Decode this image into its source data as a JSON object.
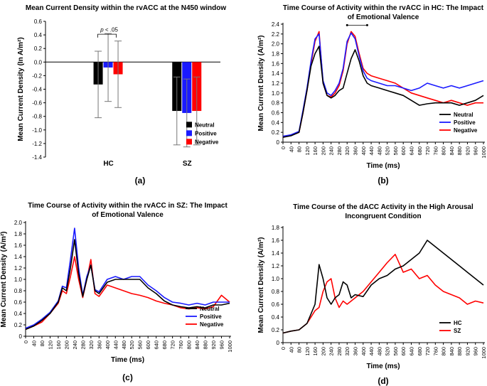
{
  "chart_data": [
    {
      "panel_label": "(a)",
      "type": "bar",
      "title": "Mean Current Density within the rvACC at the N450 window",
      "xlabel": "",
      "ylabel": "Mean Current Density (In A/m²)",
      "ylim": [
        -1.4,
        0.6
      ],
      "yticks": [
        "0.6",
        "0.4",
        "0.2",
        "0.0",
        "-0.2",
        "-0.4",
        "-0.6",
        "-0.8",
        "-1.0",
        "-1.2",
        "-1.4"
      ],
      "categories": [
        "HC",
        "SZ"
      ],
      "series": [
        {
          "name": "Neutral",
          "color": "#000000",
          "values": [
            -0.33,
            -0.72
          ],
          "err": [
            0.49,
            0.5
          ]
        },
        {
          "name": "Positive",
          "color": "#1a1aff",
          "values": [
            -0.08,
            -0.75
          ],
          "err": [
            0.5,
            0.5
          ]
        },
        {
          "name": "Negative",
          "color": "#ff0000",
          "values": [
            -0.18,
            -0.72
          ],
          "err": [
            0.49,
            0.5
          ]
        }
      ],
      "annotation": "p < .05",
      "legend_position": "lower-right"
    },
    {
      "panel_label": "(b)",
      "type": "line",
      "title": "Time Course of Activity within the rvACC in HC: The Impact of Emotional Valence",
      "xlabel": "Time (ms)",
      "ylabel": "Mean Current Density (A/m²)",
      "ylim": [
        0,
        2.4
      ],
      "xlim": [
        0,
        1000
      ],
      "yticks": [
        "0",
        "0.2",
        "0.4",
        "0.6",
        "0.8",
        "1.0",
        "1.2",
        "1.4",
        "1.6",
        "1.8",
        "2.0",
        "2.2",
        "2.4"
      ],
      "xticks": [
        "0",
        "40",
        "80",
        "120",
        "160",
        "200",
        "240",
        "280",
        "320",
        "360",
        "400",
        "440",
        "480",
        "520",
        "560",
        "600",
        "640",
        "680",
        "720",
        "760",
        "800",
        "840",
        "880",
        "920",
        "960",
        "1000"
      ],
      "series": [
        {
          "name": "Neutral",
          "color": "#000000",
          "x": [
            0,
            40,
            80,
            100,
            120,
            140,
            160,
            180,
            200,
            220,
            240,
            260,
            280,
            300,
            320,
            340,
            360,
            380,
            400,
            420,
            440,
            480,
            520,
            560,
            600,
            640,
            680,
            720,
            760,
            800,
            840,
            880,
            920,
            960,
            1000
          ],
          "y": [
            0.1,
            0.13,
            0.2,
            0.6,
            1.05,
            1.55,
            1.8,
            1.95,
            1.2,
            0.95,
            0.9,
            0.95,
            1.05,
            1.1,
            1.4,
            1.7,
            1.88,
            1.65,
            1.35,
            1.2,
            1.15,
            1.1,
            1.05,
            1.0,
            0.95,
            0.85,
            0.75,
            0.78,
            0.8,
            0.8,
            0.8,
            0.75,
            0.8,
            0.85,
            0.95
          ]
        },
        {
          "name": "Positive",
          "color": "#1a1aff",
          "x": [
            0,
            40,
            80,
            100,
            120,
            140,
            160,
            180,
            200,
            220,
            240,
            260,
            280,
            300,
            320,
            340,
            360,
            380,
            400,
            420,
            440,
            480,
            520,
            560,
            600,
            640,
            680,
            720,
            760,
            800,
            840,
            880,
            920,
            960,
            1000
          ],
          "y": [
            0.12,
            0.15,
            0.22,
            0.65,
            1.1,
            1.65,
            2.1,
            2.2,
            1.25,
            1.0,
            0.95,
            1.05,
            1.2,
            1.5,
            2.05,
            2.22,
            2.1,
            1.75,
            1.45,
            1.3,
            1.25,
            1.2,
            1.15,
            1.15,
            1.1,
            1.05,
            1.1,
            1.2,
            1.15,
            1.1,
            1.15,
            1.1,
            1.15,
            1.2,
            1.25
          ]
        },
        {
          "name": "Negative",
          "color": "#ff0000",
          "x": [
            0,
            40,
            80,
            100,
            120,
            140,
            160,
            180,
            200,
            220,
            240,
            260,
            280,
            300,
            320,
            340,
            360,
            380,
            400,
            420,
            440,
            480,
            520,
            560,
            600,
            640,
            680,
            720,
            760,
            800,
            840,
            880,
            920,
            960,
            1000
          ],
          "y": [
            0.1,
            0.14,
            0.2,
            0.6,
            1.05,
            1.6,
            2.05,
            2.25,
            1.2,
            0.95,
            0.92,
            1.0,
            1.15,
            1.45,
            2.0,
            2.25,
            2.15,
            1.8,
            1.5,
            1.4,
            1.35,
            1.3,
            1.25,
            1.2,
            1.1,
            1.0,
            0.95,
            0.9,
            0.85,
            0.8,
            0.85,
            0.8,
            0.75,
            0.8,
            0.8
          ]
        }
      ],
      "annotation": "bracket 320-420 ms",
      "legend_position": "lower-right"
    },
    {
      "panel_label": "(c)",
      "type": "line",
      "title": "Time Course of Activity within the rvACC in SZ: The Impact of Emotional Valence",
      "xlabel": "Time (ms)",
      "ylabel": "Mean Current Density (A/m²)",
      "ylim": [
        0,
        2.0
      ],
      "xlim": [
        0,
        1000
      ],
      "yticks": [
        "0",
        "0.2",
        "0.4",
        "0.6",
        "0.8",
        "1.0",
        "1.2",
        "1.4",
        "1.6",
        "1.8",
        "2.0"
      ],
      "xticks": [
        "0",
        "40",
        "80",
        "120",
        "160",
        "200",
        "240",
        "280",
        "320",
        "360",
        "400",
        "440",
        "480",
        "520",
        "560",
        "600",
        "640",
        "680",
        "720",
        "760",
        "800",
        "840",
        "880",
        "920",
        "960",
        "1000"
      ],
      "series": [
        {
          "name": "Neutral",
          "color": "#000000",
          "x": [
            0,
            40,
            80,
            120,
            160,
            180,
            200,
            220,
            240,
            260,
            280,
            300,
            320,
            340,
            360,
            400,
            440,
            480,
            520,
            560,
            600,
            640,
            680,
            720,
            760,
            800,
            840,
            880,
            920,
            960,
            1000
          ],
          "y": [
            0.12,
            0.18,
            0.28,
            0.4,
            0.6,
            0.85,
            0.8,
            1.2,
            1.7,
            1.1,
            0.7,
            1.0,
            1.25,
            0.8,
            0.75,
            0.95,
            1.0,
            1.0,
            1.0,
            1.0,
            0.85,
            0.75,
            0.62,
            0.55,
            0.52,
            0.5,
            0.52,
            0.5,
            0.55,
            0.55,
            0.58
          ]
        },
        {
          "name": "Positive",
          "color": "#1a1aff",
          "x": [
            0,
            40,
            80,
            120,
            160,
            180,
            200,
            220,
            240,
            260,
            280,
            300,
            320,
            340,
            360,
            400,
            440,
            480,
            520,
            560,
            600,
            640,
            680,
            720,
            760,
            800,
            840,
            880,
            920,
            960,
            1000
          ],
          "y": [
            0.14,
            0.2,
            0.3,
            0.42,
            0.62,
            0.88,
            0.85,
            1.35,
            1.9,
            1.2,
            0.72,
            1.05,
            1.25,
            0.82,
            0.78,
            1.0,
            1.05,
            1.0,
            1.05,
            1.05,
            0.9,
            0.8,
            0.68,
            0.6,
            0.58,
            0.55,
            0.58,
            0.55,
            0.6,
            0.6,
            0.6
          ]
        },
        {
          "name": "Negative",
          "color": "#ff0000",
          "x": [
            0,
            40,
            80,
            120,
            160,
            180,
            200,
            220,
            240,
            260,
            280,
            300,
            320,
            340,
            360,
            400,
            440,
            480,
            520,
            560,
            600,
            640,
            680,
            720,
            760,
            800,
            840,
            880,
            920,
            960,
            1000
          ],
          "y": [
            0.12,
            0.18,
            0.25,
            0.4,
            0.58,
            0.8,
            0.75,
            1.05,
            1.4,
            1.0,
            0.68,
            1.0,
            1.35,
            0.75,
            0.7,
            0.9,
            0.85,
            0.8,
            0.75,
            0.72,
            0.68,
            0.62,
            0.58,
            0.55,
            0.5,
            0.48,
            0.5,
            0.48,
            0.52,
            0.72,
            0.6
          ]
        }
      ],
      "legend_position": "lower-right"
    },
    {
      "panel_label": "(d)",
      "type": "line",
      "title": "Time Course of the dACC Activity in the High Arousal Incongruent Condition",
      "xlabel": "Time (ms)",
      "ylabel": "Mean Current Density (A/m²)",
      "ylim": [
        0,
        1.8
      ],
      "xlim": [
        0,
        1000
      ],
      "yticks": [
        "0",
        "0.2",
        "0.4",
        "0.6",
        "0.8",
        "1.0",
        "1.2",
        "1.4",
        "1.6",
        "1.8"
      ],
      "xticks": [
        "0",
        "40",
        "80",
        "120",
        "160",
        "200",
        "240",
        "280",
        "320",
        "360",
        "400",
        "440",
        "480",
        "520",
        "560",
        "600",
        "640",
        "680",
        "720",
        "760",
        "800",
        "840",
        "880",
        "920",
        "960",
        "1000"
      ],
      "series": [
        {
          "name": "HC",
          "color": "#000000",
          "x": [
            0,
            40,
            80,
            120,
            140,
            160,
            180,
            200,
            220,
            240,
            260,
            280,
            300,
            320,
            340,
            360,
            400,
            440,
            480,
            520,
            560,
            600,
            640,
            680,
            720,
            760,
            800,
            840,
            880,
            920,
            960,
            1000
          ],
          "y": [
            0.15,
            0.18,
            0.2,
            0.3,
            0.45,
            0.6,
            1.22,
            1.0,
            0.7,
            0.6,
            0.7,
            0.75,
            0.95,
            0.9,
            0.7,
            0.75,
            0.72,
            0.9,
            1.0,
            1.05,
            1.15,
            1.2,
            1.3,
            1.4,
            1.6,
            1.5,
            1.4,
            1.3,
            1.2,
            1.1,
            1.0,
            0.9
          ]
        },
        {
          "name": "SZ",
          "color": "#ff0000",
          "x": [
            0,
            40,
            80,
            120,
            140,
            160,
            180,
            200,
            220,
            240,
            260,
            280,
            300,
            320,
            340,
            360,
            400,
            440,
            480,
            520,
            560,
            600,
            640,
            680,
            720,
            760,
            800,
            840,
            880,
            920,
            960,
            1000
          ],
          "y": [
            0.15,
            0.18,
            0.2,
            0.3,
            0.4,
            0.5,
            0.55,
            0.8,
            0.95,
            1.0,
            0.7,
            0.55,
            0.65,
            0.6,
            0.65,
            0.7,
            0.8,
            0.95,
            1.1,
            1.25,
            1.38,
            1.1,
            1.15,
            1.0,
            1.05,
            0.9,
            0.8,
            0.75,
            0.7,
            0.6,
            0.65,
            0.62
          ]
        }
      ],
      "legend_position": "lower-right"
    }
  ]
}
